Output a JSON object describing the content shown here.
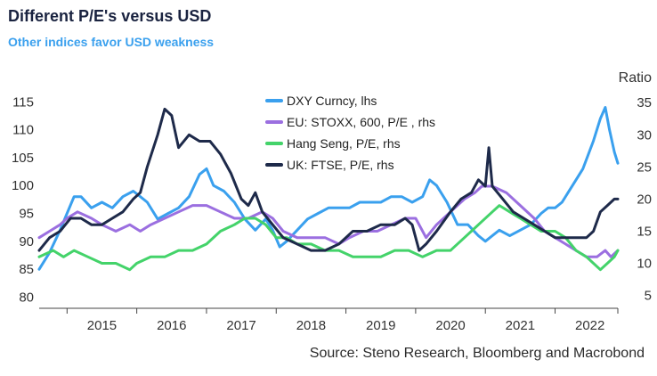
{
  "title": "Different P/E's versus USD",
  "subtitle": "Other indices favor USD weakness",
  "source": "Source: Steno Research, Bloomberg and Macrobond",
  "chart_data": {
    "type": "line",
    "ylabel_right": "Ratio",
    "x_labels": [
      "2015",
      "2016",
      "2017",
      "2018",
      "2019",
      "2020",
      "2021",
      "2022"
    ],
    "xlim": [
      2014.6,
      2022.9
    ],
    "ylim_left": [
      78,
      116
    ],
    "ylim_right": [
      3,
      36
    ],
    "yticks_left": [
      "80",
      "85",
      "90",
      "95",
      "100",
      "105",
      "110",
      "115"
    ],
    "yticks_right": [
      "5",
      "10",
      "15",
      "20",
      "25",
      "30",
      "35"
    ],
    "legend_position": "top-center",
    "series": [
      {
        "name": "DXY Curncy, lhs",
        "axis": "left",
        "color": "#3aa0ee",
        "points": [
          [
            2014.6,
            85
          ],
          [
            2014.75,
            88
          ],
          [
            2014.9,
            92
          ],
          [
            2015.0,
            95
          ],
          [
            2015.1,
            98
          ],
          [
            2015.2,
            98
          ],
          [
            2015.35,
            96
          ],
          [
            2015.5,
            97
          ],
          [
            2015.65,
            96
          ],
          [
            2015.8,
            98
          ],
          [
            2015.95,
            99
          ],
          [
            2016.05,
            98
          ],
          [
            2016.15,
            97
          ],
          [
            2016.3,
            94
          ],
          [
            2016.45,
            95
          ],
          [
            2016.6,
            96
          ],
          [
            2016.75,
            98
          ],
          [
            2016.9,
            102
          ],
          [
            2017.0,
            103
          ],
          [
            2017.1,
            100
          ],
          [
            2017.25,
            99
          ],
          [
            2017.4,
            97
          ],
          [
            2017.55,
            94
          ],
          [
            2017.7,
            92
          ],
          [
            2017.85,
            94
          ],
          [
            2017.95,
            92
          ],
          [
            2018.05,
            89
          ],
          [
            2018.15,
            90
          ],
          [
            2018.3,
            92
          ],
          [
            2018.45,
            94
          ],
          [
            2018.6,
            95
          ],
          [
            2018.75,
            96
          ],
          [
            2018.9,
            96
          ],
          [
            2019.05,
            96
          ],
          [
            2019.2,
            97
          ],
          [
            2019.35,
            97
          ],
          [
            2019.5,
            97
          ],
          [
            2019.65,
            98
          ],
          [
            2019.8,
            98
          ],
          [
            2019.95,
            97
          ],
          [
            2020.1,
            98
          ],
          [
            2020.2,
            101
          ],
          [
            2020.3,
            100
          ],
          [
            2020.45,
            97
          ],
          [
            2020.6,
            93
          ],
          [
            2020.75,
            93
          ],
          [
            2020.9,
            91
          ],
          [
            2021.0,
            90
          ],
          [
            2021.1,
            91
          ],
          [
            2021.2,
            92
          ],
          [
            2021.35,
            91
          ],
          [
            2021.5,
            92
          ],
          [
            2021.65,
            93
          ],
          [
            2021.8,
            95
          ],
          [
            2021.9,
            96
          ],
          [
            2022.0,
            96
          ],
          [
            2022.1,
            97
          ],
          [
            2022.25,
            100
          ],
          [
            2022.4,
            103
          ],
          [
            2022.55,
            108
          ],
          [
            2022.65,
            112
          ],
          [
            2022.72,
            114
          ],
          [
            2022.78,
            110
          ],
          [
            2022.85,
            106
          ],
          [
            2022.9,
            104
          ]
        ]
      },
      {
        "name": "EU: STOXX, 600, P/E , rhs",
        "axis": "right",
        "color": "#9b6fe0",
        "points": [
          [
            2014.6,
            14
          ],
          [
            2014.75,
            15
          ],
          [
            2014.9,
            16
          ],
          [
            2015.0,
            17
          ],
          [
            2015.15,
            18
          ],
          [
            2015.35,
            17
          ],
          [
            2015.5,
            16
          ],
          [
            2015.7,
            15
          ],
          [
            2015.9,
            16
          ],
          [
            2016.05,
            15
          ],
          [
            2016.2,
            16
          ],
          [
            2016.4,
            17
          ],
          [
            2016.6,
            18
          ],
          [
            2016.8,
            19
          ],
          [
            2017.0,
            19
          ],
          [
            2017.2,
            18
          ],
          [
            2017.4,
            17
          ],
          [
            2017.6,
            17
          ],
          [
            2017.8,
            18
          ],
          [
            2017.95,
            17
          ],
          [
            2018.1,
            15
          ],
          [
            2018.3,
            14
          ],
          [
            2018.5,
            14
          ],
          [
            2018.7,
            14
          ],
          [
            2018.9,
            13
          ],
          [
            2019.05,
            14
          ],
          [
            2019.25,
            15
          ],
          [
            2019.45,
            15
          ],
          [
            2019.65,
            16
          ],
          [
            2019.85,
            17
          ],
          [
            2020.0,
            17
          ],
          [
            2020.15,
            14
          ],
          [
            2020.3,
            16
          ],
          [
            2020.5,
            18
          ],
          [
            2020.7,
            20
          ],
          [
            2020.85,
            21
          ],
          [
            2020.95,
            22
          ],
          [
            2021.1,
            22
          ],
          [
            2021.3,
            21
          ],
          [
            2021.5,
            19
          ],
          [
            2021.7,
            17
          ],
          [
            2021.85,
            15
          ],
          [
            2022.0,
            14
          ],
          [
            2022.15,
            13
          ],
          [
            2022.3,
            12
          ],
          [
            2022.45,
            11
          ],
          [
            2022.6,
            11
          ],
          [
            2022.72,
            12
          ],
          [
            2022.8,
            11
          ],
          [
            2022.9,
            12
          ]
        ]
      },
      {
        "name": "Hang Seng, P/E, rhs",
        "axis": "right",
        "color": "#44d36a",
        "points": [
          [
            2014.6,
            11
          ],
          [
            2014.8,
            12
          ],
          [
            2014.95,
            11
          ],
          [
            2015.1,
            12
          ],
          [
            2015.3,
            11
          ],
          [
            2015.5,
            10
          ],
          [
            2015.7,
            10
          ],
          [
            2015.9,
            9
          ],
          [
            2016.0,
            10
          ],
          [
            2016.2,
            11
          ],
          [
            2016.4,
            11
          ],
          [
            2016.6,
            12
          ],
          [
            2016.8,
            12
          ],
          [
            2017.0,
            13
          ],
          [
            2017.2,
            15
          ],
          [
            2017.4,
            16
          ],
          [
            2017.55,
            17
          ],
          [
            2017.7,
            17
          ],
          [
            2017.85,
            16
          ],
          [
            2018.0,
            14
          ],
          [
            2018.15,
            14
          ],
          [
            2018.3,
            13
          ],
          [
            2018.5,
            13
          ],
          [
            2018.7,
            12
          ],
          [
            2018.9,
            12
          ],
          [
            2019.1,
            11
          ],
          [
            2019.3,
            11
          ],
          [
            2019.5,
            11
          ],
          [
            2019.7,
            12
          ],
          [
            2019.9,
            12
          ],
          [
            2020.1,
            11
          ],
          [
            2020.3,
            12
          ],
          [
            2020.5,
            12
          ],
          [
            2020.7,
            14
          ],
          [
            2020.9,
            16
          ],
          [
            2021.1,
            18
          ],
          [
            2021.2,
            19
          ],
          [
            2021.35,
            18
          ],
          [
            2021.5,
            17
          ],
          [
            2021.65,
            16
          ],
          [
            2021.8,
            15
          ],
          [
            2022.0,
            15
          ],
          [
            2022.15,
            14
          ],
          [
            2022.3,
            12
          ],
          [
            2022.45,
            11
          ],
          [
            2022.55,
            10
          ],
          [
            2022.65,
            9
          ],
          [
            2022.75,
            10
          ],
          [
            2022.85,
            11
          ],
          [
            2022.9,
            12
          ]
        ]
      },
      {
        "name": "UK: FTSE, P/E, rhs",
        "axis": "right",
        "color": "#1e2a4a",
        "points": [
          [
            2014.6,
            12
          ],
          [
            2014.75,
            14
          ],
          [
            2014.9,
            15
          ],
          [
            2015.05,
            17
          ],
          [
            2015.2,
            17
          ],
          [
            2015.35,
            16
          ],
          [
            2015.5,
            16
          ],
          [
            2015.65,
            17
          ],
          [
            2015.8,
            18
          ],
          [
            2015.95,
            20
          ],
          [
            2016.05,
            21
          ],
          [
            2016.15,
            25
          ],
          [
            2016.3,
            30
          ],
          [
            2016.4,
            34
          ],
          [
            2016.5,
            33
          ],
          [
            2016.6,
            28
          ],
          [
            2016.75,
            30
          ],
          [
            2016.9,
            29
          ],
          [
            2017.05,
            29
          ],
          [
            2017.2,
            27
          ],
          [
            2017.35,
            24
          ],
          [
            2017.5,
            20
          ],
          [
            2017.6,
            19
          ],
          [
            2017.7,
            21
          ],
          [
            2017.8,
            18
          ],
          [
            2017.95,
            16
          ],
          [
            2018.1,
            14
          ],
          [
            2018.3,
            13
          ],
          [
            2018.5,
            12
          ],
          [
            2018.7,
            12
          ],
          [
            2018.9,
            13
          ],
          [
            2019.1,
            15
          ],
          [
            2019.3,
            15
          ],
          [
            2019.5,
            16
          ],
          [
            2019.7,
            16
          ],
          [
            2019.85,
            17
          ],
          [
            2019.95,
            16
          ],
          [
            2020.05,
            12
          ],
          [
            2020.15,
            13
          ],
          [
            2020.3,
            15
          ],
          [
            2020.5,
            18
          ],
          [
            2020.65,
            20
          ],
          [
            2020.8,
            21
          ],
          [
            2020.9,
            23
          ],
          [
            2021.0,
            22
          ],
          [
            2021.05,
            28
          ],
          [
            2021.1,
            22
          ],
          [
            2021.25,
            20
          ],
          [
            2021.4,
            18
          ],
          [
            2021.55,
            17
          ],
          [
            2021.7,
            16
          ],
          [
            2021.85,
            15
          ],
          [
            2022.0,
            14
          ],
          [
            2022.15,
            14
          ],
          [
            2022.3,
            14
          ],
          [
            2022.45,
            14
          ],
          [
            2022.55,
            15
          ],
          [
            2022.65,
            18
          ],
          [
            2022.75,
            19
          ],
          [
            2022.85,
            20
          ],
          [
            2022.9,
            20
          ]
        ]
      }
    ]
  }
}
